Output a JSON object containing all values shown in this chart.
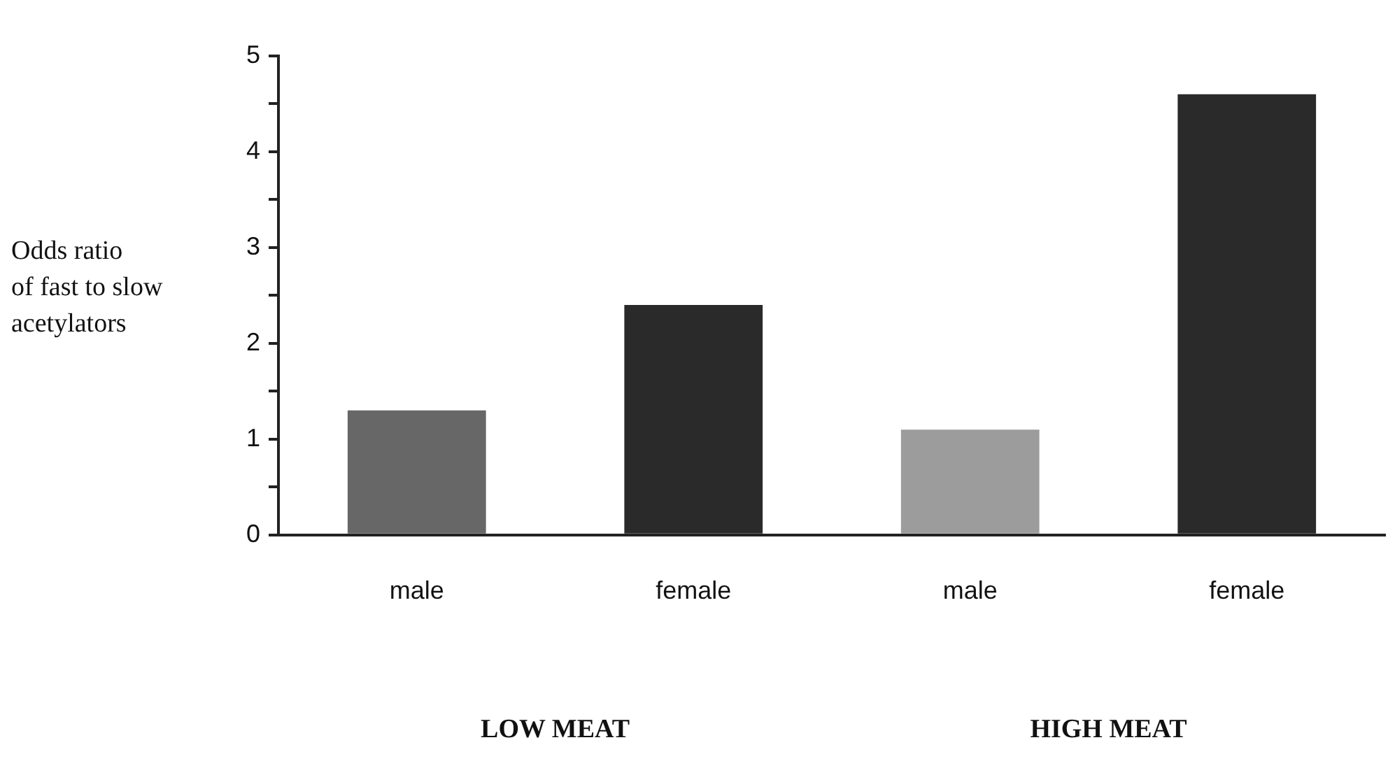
{
  "chart_data": {
    "type": "bar",
    "ylabel": "Odds ratio\nof fast to slow\nacetylators",
    "categories": [
      "male",
      "female",
      "male",
      "female"
    ],
    "values": [
      1.3,
      2.4,
      1.1,
      4.6
    ],
    "colors": [
      "#676767",
      "#2a2a2a",
      "#9c9c9c",
      "#2a2a2a"
    ],
    "ylim": [
      0,
      5
    ],
    "yticks": [
      0,
      {
        "value": 0.5,
        "label": null
      },
      1,
      {
        "value": 1.5,
        "label": null
      },
      2,
      {
        "value": 2.5,
        "label": null
      },
      3,
      {
        "value": 3.5,
        "label": null
      },
      4,
      {
        "value": 4.5,
        "label": null
      },
      5
    ],
    "grid": false,
    "legend": false,
    "annotations": [
      "LOW MEAT",
      "HIGH MEAT"
    ]
  }
}
